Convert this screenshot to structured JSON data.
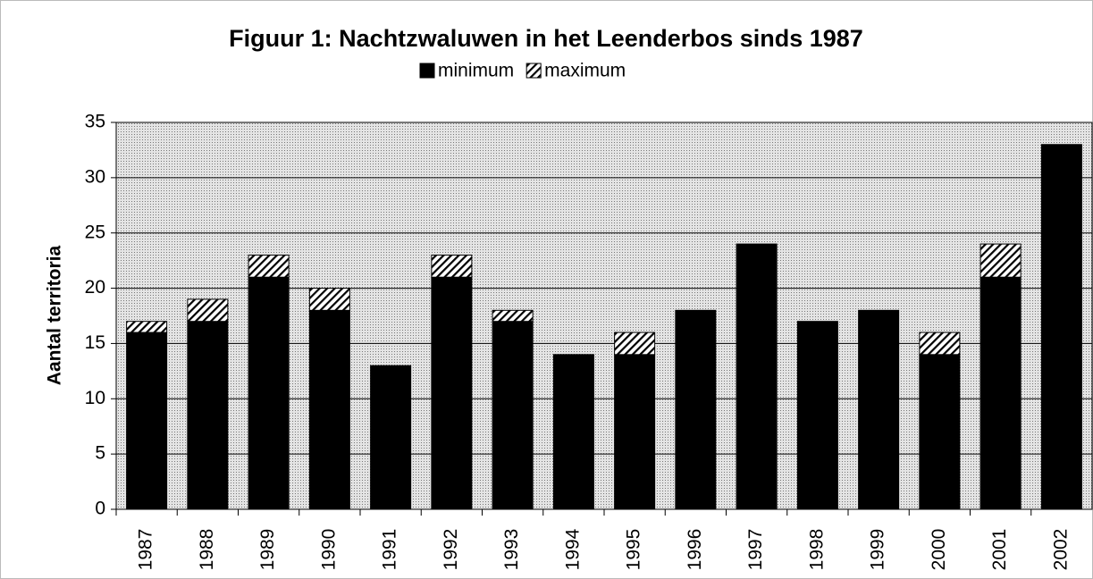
{
  "chart_data": {
    "type": "stacked-bar",
    "title": "Figuur 1: Nachtzwaluwen in het Leenderbos sinds 1987",
    "y_label": "Aantal territoria",
    "categories": [
      "1987",
      "1988",
      "1989",
      "1990",
      "1991",
      "1992",
      "1993",
      "1994",
      "1995",
      "1996",
      "1997",
      "1998",
      "1999",
      "2000",
      "2001",
      "2002"
    ],
    "series": [
      {
        "name": "minimum",
        "color": "#000000",
        "pattern": "solid",
        "values": [
          16,
          17,
          21,
          18,
          13,
          21,
          17,
          14,
          14,
          18,
          24,
          17,
          18,
          14,
          21,
          33
        ]
      },
      {
        "name": "maximum",
        "color": "#000000",
        "pattern": "hatch",
        "values": [
          1,
          2,
          2,
          2,
          0,
          2,
          1,
          0,
          2,
          0,
          0,
          0,
          0,
          2,
          3,
          0
        ]
      }
    ],
    "ylim": [
      0,
      35
    ],
    "yticks": [
      0,
      5,
      10,
      15,
      20,
      25,
      30,
      35
    ],
    "grid": true,
    "legend": "top"
  }
}
